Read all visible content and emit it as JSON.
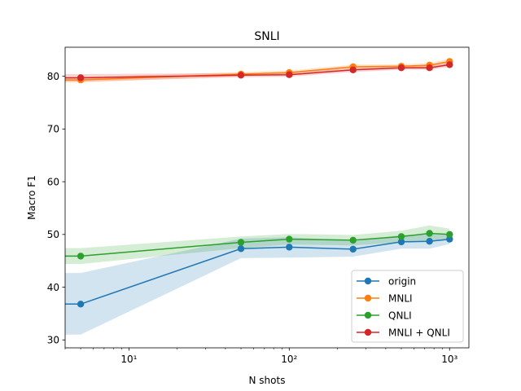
{
  "chart_data": {
    "type": "line",
    "title": "SNLI",
    "xlabel": "N shots",
    "ylabel": "Macro F1",
    "x_scale": "log",
    "xlim": [
      4,
      1320
    ],
    "ylim": [
      28.5,
      85.5
    ],
    "x": [
      5,
      50,
      100,
      250,
      500,
      750,
      1000
    ],
    "x_ticks": [
      10,
      100,
      1000
    ],
    "x_tick_labels": [
      "10¹",
      "10²",
      "10³"
    ],
    "y_ticks": [
      30,
      40,
      50,
      60,
      70,
      80
    ],
    "y_tick_labels": [
      "30",
      "40",
      "50",
      "60",
      "70",
      "80"
    ],
    "grid": false,
    "legend_position": "lower-right",
    "series": [
      {
        "name": "origin",
        "color": "#1f77b4",
        "values": [
          36.8,
          47.3,
          47.6,
          47.2,
          48.6,
          48.7,
          49.1
        ],
        "lower": [
          31.0,
          45.5,
          45.6,
          45.8,
          47.3,
          47.3,
          48.2
        ],
        "upper": [
          42.7,
          49.2,
          49.5,
          48.7,
          49.9,
          50.0,
          50.0
        ],
        "band_start": [
          36.8,
          31.0,
          42.7
        ]
      },
      {
        "name": "MNLI",
        "color": "#ff7f0e",
        "values": [
          79.3,
          80.4,
          80.7,
          81.8,
          81.9,
          82.1,
          82.8
        ],
        "lower": [
          78.8,
          80.0,
          80.3,
          81.4,
          81.5,
          81.7,
          82.3
        ],
        "upper": [
          79.8,
          80.8,
          81.1,
          82.2,
          82.3,
          82.5,
          83.3
        ],
        "band_start": [
          79.3,
          78.8,
          79.8
        ]
      },
      {
        "name": "QNLI",
        "color": "#2ca02c",
        "values": [
          45.9,
          48.5,
          49.1,
          48.9,
          49.6,
          50.2,
          50.0
        ],
        "lower": [
          44.4,
          47.4,
          48.1,
          47.9,
          48.5,
          48.7,
          48.9
        ],
        "upper": [
          47.4,
          49.6,
          50.1,
          49.9,
          50.7,
          51.7,
          51.1
        ],
        "band_start": [
          45.9,
          44.4,
          47.4
        ]
      },
      {
        "name": "MNLI + QNLI",
        "color": "#d62728",
        "values": [
          79.7,
          80.2,
          80.3,
          81.2,
          81.6,
          81.6,
          82.2
        ],
        "lower": [
          79.0,
          79.8,
          79.9,
          80.8,
          81.2,
          81.2,
          81.8
        ],
        "upper": [
          80.4,
          80.6,
          80.7,
          81.6,
          82.0,
          82.0,
          82.6
        ],
        "band_start": [
          79.7,
          79.0,
          80.4
        ]
      }
    ]
  }
}
